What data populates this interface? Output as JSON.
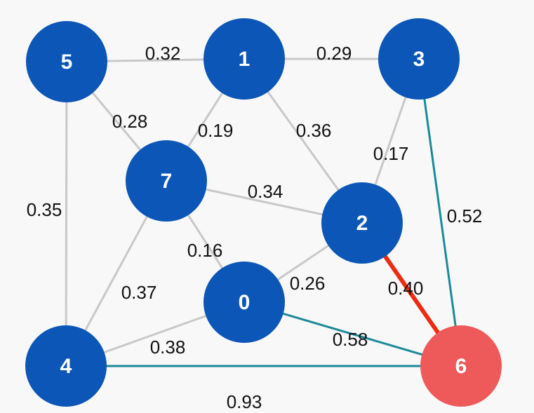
{
  "colors": {
    "node_default": "#0b56b6",
    "node_highlight": "#ee5a5a",
    "edge_default": "#c8c8c8",
    "edge_teal": "#1a8a9a",
    "edge_red": "#ee2a10",
    "label_text": "#111111",
    "node_text": "#ffffff"
  },
  "nodes": [
    {
      "id": "5",
      "label": "5",
      "state": "default"
    },
    {
      "id": "1",
      "label": "1",
      "state": "default"
    },
    {
      "id": "3",
      "label": "3",
      "state": "default"
    },
    {
      "id": "7",
      "label": "7",
      "state": "default"
    },
    {
      "id": "2",
      "label": "2",
      "state": "default"
    },
    {
      "id": "0",
      "label": "0",
      "state": "default"
    },
    {
      "id": "4",
      "label": "4",
      "state": "default"
    },
    {
      "id": "6",
      "label": "6",
      "state": "highlight"
    }
  ],
  "edges": [
    {
      "from": "5",
      "to": "1",
      "weight": "0.32",
      "state": "default"
    },
    {
      "from": "1",
      "to": "3",
      "weight": "0.29",
      "state": "default"
    },
    {
      "from": "5",
      "to": "7",
      "weight": "0.28",
      "state": "default"
    },
    {
      "from": "1",
      "to": "7",
      "weight": "0.19",
      "state": "default"
    },
    {
      "from": "1",
      "to": "2",
      "weight": "0.36",
      "state": "default"
    },
    {
      "from": "3",
      "to": "2",
      "weight": "0.17",
      "state": "default"
    },
    {
      "from": "5",
      "to": "4",
      "weight": "0.35",
      "state": "default"
    },
    {
      "from": "7",
      "to": "2",
      "weight": "0.34",
      "state": "default"
    },
    {
      "from": "3",
      "to": "6",
      "weight": "0.52",
      "state": "teal"
    },
    {
      "from": "7",
      "to": "0",
      "weight": "0.16",
      "state": "default"
    },
    {
      "from": "7",
      "to": "4",
      "weight": "0.37",
      "state": "default"
    },
    {
      "from": "0",
      "to": "2",
      "weight": "0.26",
      "state": "default"
    },
    {
      "from": "2",
      "to": "6",
      "weight": "0.40",
      "state": "red"
    },
    {
      "from": "0",
      "to": "4",
      "weight": "0.38",
      "state": "default"
    },
    {
      "from": "0",
      "to": "6",
      "weight": "0.58",
      "state": "teal"
    },
    {
      "from": "4",
      "to": "6",
      "weight": "0.93",
      "state": "teal"
    }
  ]
}
